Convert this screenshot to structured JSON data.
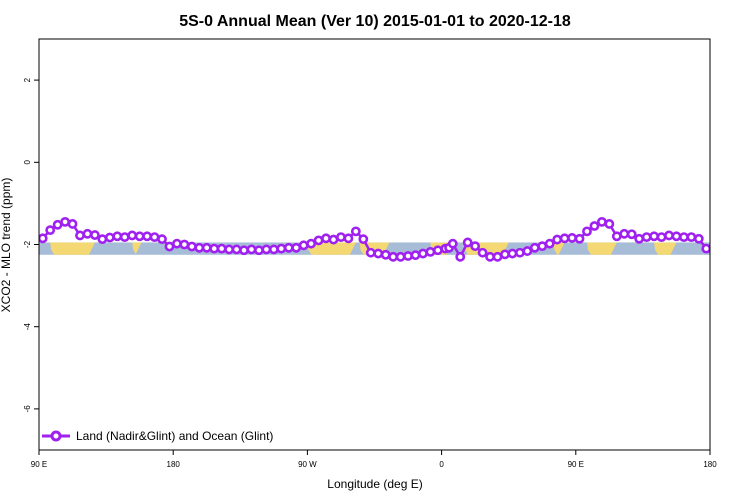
{
  "chart_data": {
    "type": "line",
    "title": "5S-0 Annual Mean (Ver 10)   2015-01-01 to 2020-12-18",
    "xlabel": "Longitude (deg E)",
    "ylabel": "XCO2 - MLO trend (ppm)",
    "xlim": [
      90,
      450
    ],
    "ylim": [
      -7,
      3
    ],
    "x_ticks": [
      {
        "value": 90,
        "label": "90 E"
      },
      {
        "value": 162,
        "label": "180"
      },
      {
        "value": 234,
        "label": "90 W"
      },
      {
        "value": 306,
        "label": "0"
      },
      {
        "value": 378,
        "label": "90 E"
      },
      {
        "value": 450,
        "label": "180"
      }
    ],
    "y_ticks": [
      {
        "value": 2,
        "label": "2"
      },
      {
        "value": 0,
        "label": "0"
      },
      {
        "value": -2,
        "label": "-2"
      },
      {
        "value": -4,
        "label": "-4"
      },
      {
        "value": -6,
        "label": "-6"
      }
    ],
    "grid": false,
    "legend_position": "bottom-left",
    "map_band": {
      "y_min": -2.25,
      "y_max": -1.95,
      "ocean_color": "#a7bcd6",
      "land_color": "#f3d873"
    },
    "series": [
      {
        "name": "Land (Nadir&Glint) and Ocean (Glint)",
        "color": "#a020f0",
        "x": [
          92,
          96,
          100,
          104,
          108,
          112,
          116,
          120,
          124,
          128,
          132,
          136,
          140,
          144,
          148,
          152,
          156,
          160,
          164,
          168,
          172,
          176,
          180,
          184,
          188,
          192,
          196,
          200,
          204,
          208,
          212,
          216,
          220,
          224,
          228,
          232,
          236,
          240,
          244,
          248,
          252,
          256,
          260,
          264,
          268,
          272,
          276,
          280,
          284,
          288,
          292,
          296,
          300,
          304,
          308,
          310,
          312,
          316,
          320,
          324,
          328,
          332,
          336,
          340,
          344,
          348,
          352,
          356,
          360,
          364,
          368,
          372,
          376,
          380,
          384,
          388,
          392,
          396,
          400,
          404,
          408,
          412,
          416,
          420,
          424,
          428,
          432,
          436,
          440,
          444,
          448
        ],
        "y": [
          -1.85,
          -1.65,
          -1.52,
          -1.45,
          -1.5,
          -1.78,
          -1.74,
          -1.77,
          -1.87,
          -1.83,
          -1.8,
          -1.82,
          -1.78,
          -1.8,
          -1.8,
          -1.82,
          -1.87,
          -2.05,
          -1.98,
          -2.0,
          -2.05,
          -2.08,
          -2.08,
          -2.1,
          -2.1,
          -2.12,
          -2.12,
          -2.14,
          -2.12,
          -2.14,
          -2.12,
          -2.12,
          -2.1,
          -2.08,
          -2.08,
          -2.02,
          -1.98,
          -1.9,
          -1.85,
          -1.88,
          -1.82,
          -1.85,
          -1.68,
          -1.87,
          -2.2,
          -2.22,
          -2.25,
          -2.3,
          -2.3,
          -2.28,
          -2.26,
          -2.22,
          -2.18,
          -2.14,
          -2.1,
          -2.08,
          -1.98,
          -2.3,
          -1.95,
          -2.04,
          -2.2,
          -2.3,
          -2.3,
          -2.24,
          -2.22,
          -2.2,
          -2.16,
          -2.08,
          -2.04,
          -1.98,
          -1.88,
          -1.85,
          -1.84,
          -1.86,
          -1.68,
          -1.55,
          -1.45,
          -1.5,
          -1.8,
          -1.74,
          -1.75,
          -1.86,
          -1.82,
          -1.8,
          -1.82,
          -1.78,
          -1.8,
          -1.82,
          -1.82,
          -1.86,
          -2.1
        ]
      }
    ]
  }
}
